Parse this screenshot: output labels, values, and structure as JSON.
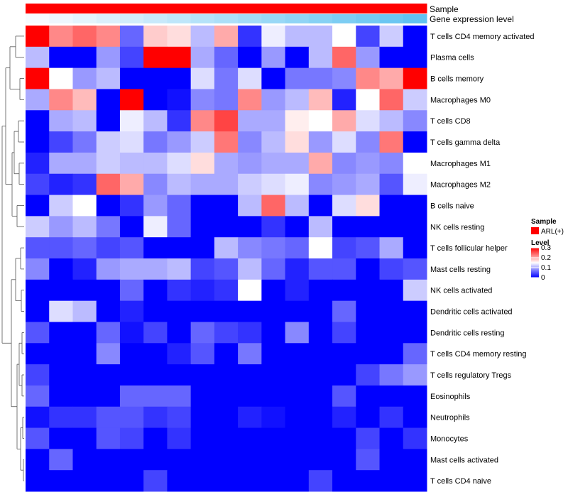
{
  "chart_data": {
    "type": "heatmap",
    "title": "",
    "rows": [
      "T cells CD4 memory activated",
      "Plasma cells",
      "B cells memory",
      "Macrophages M0",
      "T cells CD8",
      "T cells gamma delta",
      "Macrophages M1",
      "Macrophages M2",
      "B cells naive",
      "NK cells resting",
      "T cells follicular helper",
      "Mast cells resting",
      "NK cells activated",
      "Dendritic cells activated",
      "Dendritic cells resting",
      "T cells CD4 memory resting",
      "T cells regulatory  Tregs",
      "Eosinophils",
      "Neutrophils",
      "Monocytes",
      "Mast cells activated",
      "T cells CD4 naive"
    ],
    "values": [
      [
        0.3,
        0.22,
        0.24,
        0.22,
        0.06,
        0.18,
        0.17,
        0.11,
        0.2,
        0.03,
        0.14,
        0.11,
        0.11,
        0.15,
        0.04,
        0.12,
        0.0
      ],
      [
        0.11,
        0.0,
        0.0,
        0.09,
        0.04,
        0.3,
        0.3,
        0.1,
        0.06,
        0.0,
        0.09,
        0.0,
        0.11,
        0.24,
        0.09,
        0.0,
        0.0
      ],
      [
        0.3,
        0.15,
        0.09,
        0.11,
        0.0,
        0.0,
        0.0,
        0.13,
        0.07,
        0.13,
        0.0,
        0.07,
        0.07,
        0.08,
        0.22,
        0.2,
        0.3
      ],
      [
        0.1,
        0.22,
        0.19,
        0.0,
        0.3,
        0.0,
        0.01,
        0.08,
        0.07,
        0.22,
        0.09,
        0.11,
        0.19,
        0.02,
        0.15,
        0.24,
        0.12
      ],
      [
        0.0,
        0.1,
        0.11,
        0.0,
        0.14,
        0.11,
        0.03,
        0.22,
        0.26,
        0.1,
        0.1,
        0.16,
        0.15,
        0.2,
        0.13,
        0.11,
        0.08
      ],
      [
        0.0,
        0.04,
        0.07,
        0.12,
        0.13,
        0.07,
        0.09,
        0.12,
        0.23,
        0.08,
        0.11,
        0.17,
        0.09,
        0.13,
        0.08,
        0.23,
        0.0
      ],
      [
        0.02,
        0.1,
        0.1,
        0.12,
        0.11,
        0.11,
        0.13,
        0.17,
        0.1,
        0.09,
        0.1,
        0.1,
        0.2,
        0.08,
        0.09,
        0.08,
        0.15
      ],
      [
        0.04,
        0.02,
        0.03,
        0.24,
        0.2,
        0.08,
        0.11,
        0.1,
        0.1,
        0.12,
        0.13,
        0.14,
        0.08,
        0.09,
        0.1,
        0.05,
        0.14
      ],
      [
        0.0,
        0.12,
        0.15,
        0.0,
        0.03,
        0.09,
        0.06,
        0.0,
        0.0,
        0.11,
        0.24,
        0.11,
        0.0,
        0.13,
        0.17,
        0.0,
        0.0
      ],
      [
        0.12,
        0.09,
        0.11,
        0.07,
        0.0,
        0.14,
        0.06,
        0.0,
        0.0,
        0.0,
        0.03,
        0.0,
        0.11,
        0.0,
        0.0,
        0.0,
        0.0
      ],
      [
        0.05,
        0.05,
        0.06,
        0.04,
        0.05,
        0.0,
        0.0,
        0.0,
        0.11,
        0.08,
        0.07,
        0.06,
        0.15,
        0.04,
        0.05,
        0.1,
        0.0
      ],
      [
        0.08,
        0.0,
        0.02,
        0.09,
        0.1,
        0.1,
        0.11,
        0.04,
        0.05,
        0.11,
        0.06,
        0.02,
        0.05,
        0.05,
        0.0,
        0.04,
        0.05
      ],
      [
        0.0,
        0.0,
        0.0,
        0.0,
        0.06,
        0.0,
        0.03,
        0.02,
        0.03,
        0.15,
        0.0,
        0.02,
        0.0,
        0.0,
        0.0,
        0.0,
        0.12
      ],
      [
        0.0,
        0.13,
        0.11,
        0.0,
        0.02,
        0.0,
        0.0,
        0.0,
        0.0,
        0.0,
        0.0,
        0.0,
        0.0,
        0.06,
        0.0,
        0.0,
        0.0
      ],
      [
        0.05,
        0.0,
        0.0,
        0.06,
        0.01,
        0.04,
        0.0,
        0.06,
        0.04,
        0.03,
        0.0,
        0.08,
        0.0,
        0.04,
        0.0,
        0.0,
        0.0
      ],
      [
        0.0,
        0.0,
        0.0,
        0.08,
        0.0,
        0.0,
        0.02,
        0.05,
        0.0,
        0.07,
        0.0,
        0.0,
        0.0,
        0.0,
        0.0,
        0.0,
        0.06
      ],
      [
        0.04,
        0.0,
        0.0,
        0.0,
        0.0,
        0.0,
        0.0,
        0.0,
        0.0,
        0.0,
        0.0,
        0.0,
        0.0,
        0.0,
        0.04,
        0.07,
        0.09
      ],
      [
        0.06,
        0.0,
        0.0,
        0.0,
        0.06,
        0.06,
        0.06,
        0.0,
        0.0,
        0.0,
        0.0,
        0.0,
        0.0,
        0.05,
        0.0,
        0.0,
        0.0
      ],
      [
        0.01,
        0.03,
        0.03,
        0.05,
        0.05,
        0.03,
        0.04,
        0.0,
        0.0,
        0.02,
        0.01,
        0.0,
        0.0,
        0.02,
        0.0,
        0.03,
        0.0
      ],
      [
        0.05,
        0.0,
        0.0,
        0.05,
        0.04,
        0.0,
        0.03,
        0.0,
        0.0,
        0.0,
        0.0,
        0.0,
        0.0,
        0.0,
        0.04,
        0.0,
        0.03
      ],
      [
        0.0,
        0.06,
        0.0,
        0.0,
        0.0,
        0.0,
        0.0,
        0.0,
        0.0,
        0.0,
        0.0,
        0.0,
        0.0,
        0.0,
        0.05,
        0.0,
        0.0
      ],
      [
        0.0,
        0.0,
        0.0,
        0.0,
        0.0,
        0.04,
        0.0,
        0.0,
        0.0,
        0.0,
        0.0,
        0.0,
        0.04,
        0.0,
        0.0,
        0.0,
        0.0
      ]
    ],
    "column_annotations": {
      "sample": {
        "label": "Sample",
        "values": [
          "ARL(+)",
          "ARL(+)",
          "ARL(+)",
          "ARL(+)",
          "ARL(+)",
          "ARL(+)",
          "ARL(+)",
          "ARL(+)",
          "ARL(+)",
          "ARL(+)",
          "ARL(+)",
          "ARL(+)",
          "ARL(+)",
          "ARL(+)",
          "ARL(+)",
          "ARL(+)",
          "ARL(+)"
        ],
        "color": "#ff0000"
      },
      "gene_expression": {
        "label": "Gene expression level",
        "values": [
          0.0,
          0.06,
          0.12,
          0.18,
          0.24,
          0.3,
          0.36,
          0.42,
          0.48,
          0.54,
          0.6,
          0.66,
          0.72,
          0.78,
          0.84,
          0.9,
          0.96
        ],
        "color_low": "#f7fbff",
        "color_high": "#5bc0f0"
      }
    },
    "color_scale": {
      "low": "#0000ff",
      "mid": "#ffffff",
      "high": "#ff0000",
      "min": 0,
      "max": 0.3
    },
    "legend": {
      "sample_title": "Sample",
      "sample_item": "ARL(+)",
      "level_title": "Level",
      "ticks": [
        0.3,
        0.2,
        0.1,
        0
      ],
      "tick_labels": [
        "0.3",
        "0.2",
        "0.1",
        "0"
      ]
    },
    "row_dendrogram": true
  }
}
